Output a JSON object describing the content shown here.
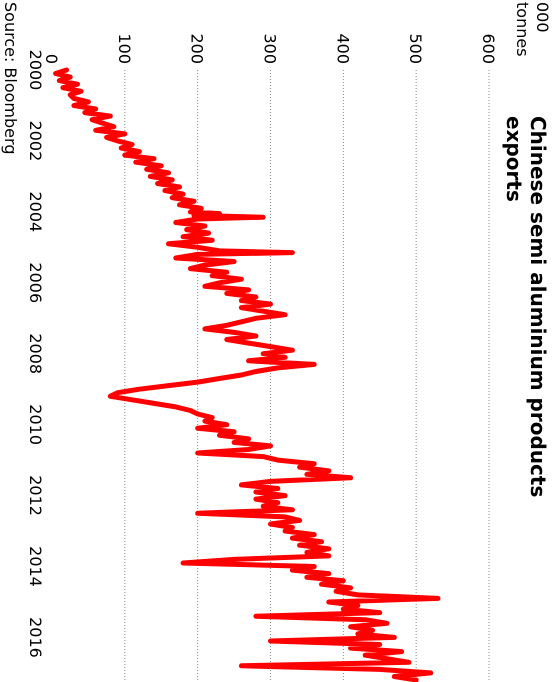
{
  "chart_data": {
    "type": "line",
    "title_line1": "Chinese semi aluminium products",
    "title_line2": "exports",
    "ylabel_line1": "000",
    "ylabel_line2": "tonnes",
    "source": "Source: Bloomberg",
    "xlim": [
      2000,
      2017.2
    ],
    "ylim": [
      0,
      600
    ],
    "x_ticks": [
      "2000",
      "2002",
      "2004",
      "2006",
      "2008",
      "2010",
      "2012",
      "2014",
      "2016"
    ],
    "y_ticks": [
      "0",
      "100",
      "200",
      "300",
      "400",
      "500",
      "600"
    ],
    "grid": "horizontal dotted",
    "series": [
      {
        "color": "#ff0000",
        "points": [
          [
            2000.0,
            20
          ],
          [
            2000.1,
            5
          ],
          [
            2000.2,
            25
          ],
          [
            2000.3,
            10
          ],
          [
            2000.4,
            35
          ],
          [
            2000.5,
            15
          ],
          [
            2000.6,
            40
          ],
          [
            2000.7,
            25
          ],
          [
            2000.8,
            30
          ],
          [
            2000.9,
            50
          ],
          [
            2001.0,
            30
          ],
          [
            2001.1,
            60
          ],
          [
            2001.2,
            45
          ],
          [
            2001.3,
            80
          ],
          [
            2001.4,
            55
          ],
          [
            2001.5,
            70
          ],
          [
            2001.6,
            85
          ],
          [
            2001.7,
            60
          ],
          [
            2001.8,
            100
          ],
          [
            2001.9,
            75
          ],
          [
            2002.0,
            90
          ],
          [
            2002.1,
            110
          ],
          [
            2002.2,
            95
          ],
          [
            2002.3,
            120
          ],
          [
            2002.4,
            100
          ],
          [
            2002.5,
            140
          ],
          [
            2002.6,
            115
          ],
          [
            2002.7,
            150
          ],
          [
            2002.8,
            130
          ],
          [
            2002.9,
            160
          ],
          [
            2003.0,
            135
          ],
          [
            2003.1,
            165
          ],
          [
            2003.2,
            145
          ],
          [
            2003.3,
            175
          ],
          [
            2003.4,
            155
          ],
          [
            2003.5,
            180
          ],
          [
            2003.6,
            165
          ],
          [
            2003.7,
            195
          ],
          [
            2003.8,
            175
          ],
          [
            2003.9,
            205
          ],
          [
            2004.0,
            190
          ],
          [
            2004.05,
            230
          ],
          [
            2004.1,
            195
          ],
          [
            2004.15,
            290
          ],
          [
            2004.2,
            200
          ],
          [
            2004.3,
            170
          ],
          [
            2004.4,
            210
          ],
          [
            2004.5,
            185
          ],
          [
            2004.6,
            215
          ],
          [
            2004.7,
            180
          ],
          [
            2004.8,
            220
          ],
          [
            2004.9,
            160
          ],
          [
            2005.0,
            200
          ],
          [
            2005.1,
            230
          ],
          [
            2005.15,
            330
          ],
          [
            2005.2,
            200
          ],
          [
            2005.3,
            170
          ],
          [
            2005.4,
            250
          ],
          [
            2005.5,
            210
          ],
          [
            2005.6,
            190
          ],
          [
            2005.7,
            240
          ],
          [
            2005.8,
            220
          ],
          [
            2005.9,
            260
          ],
          [
            2006.0,
            230
          ],
          [
            2006.1,
            210
          ],
          [
            2006.2,
            270
          ],
          [
            2006.3,
            240
          ],
          [
            2006.4,
            280
          ],
          [
            2006.5,
            260
          ],
          [
            2006.6,
            300
          ],
          [
            2006.7,
            260
          ],
          [
            2006.8,
            290
          ],
          [
            2006.9,
            320
          ],
          [
            2007.0,
            280
          ],
          [
            2007.1,
            260
          ],
          [
            2007.2,
            240
          ],
          [
            2007.3,
            210
          ],
          [
            2007.4,
            250
          ],
          [
            2007.5,
            280
          ],
          [
            2007.6,
            240
          ],
          [
            2007.7,
            270
          ],
          [
            2007.8,
            300
          ],
          [
            2007.9,
            330
          ],
          [
            2008.0,
            290
          ],
          [
            2008.1,
            320
          ],
          [
            2008.2,
            270
          ],
          [
            2008.3,
            360
          ],
          [
            2008.4,
            310
          ],
          [
            2008.5,
            280
          ],
          [
            2008.6,
            260
          ],
          [
            2008.7,
            230
          ],
          [
            2008.8,
            200
          ],
          [
            2008.9,
            160
          ],
          [
            2009.0,
            120
          ],
          [
            2009.1,
            90
          ],
          [
            2009.2,
            80
          ],
          [
            2009.3,
            110
          ],
          [
            2009.4,
            140
          ],
          [
            2009.5,
            170
          ],
          [
            2009.6,
            190
          ],
          [
            2009.7,
            200
          ],
          [
            2009.8,
            220
          ],
          [
            2009.9,
            210
          ],
          [
            2010.0,
            240
          ],
          [
            2010.1,
            200
          ],
          [
            2010.2,
            250
          ],
          [
            2010.3,
            230
          ],
          [
            2010.4,
            270
          ],
          [
            2010.5,
            250
          ],
          [
            2010.6,
            300
          ],
          [
            2010.7,
            270
          ],
          [
            2010.8,
            200
          ],
          [
            2010.9,
            290
          ],
          [
            2011.0,
            310
          ],
          [
            2011.1,
            360
          ],
          [
            2011.2,
            340
          ],
          [
            2011.3,
            380
          ],
          [
            2011.4,
            350
          ],
          [
            2011.5,
            410
          ],
          [
            2011.6,
            300
          ],
          [
            2011.7,
            260
          ],
          [
            2011.8,
            310
          ],
          [
            2011.9,
            280
          ],
          [
            2012.0,
            320
          ],
          [
            2012.1,
            280
          ],
          [
            2012.2,
            310
          ],
          [
            2012.3,
            290
          ],
          [
            2012.4,
            330
          ],
          [
            2012.5,
            200
          ],
          [
            2012.6,
            320
          ],
          [
            2012.7,
            340
          ],
          [
            2012.8,
            300
          ],
          [
            2012.9,
            330
          ],
          [
            2013.0,
            320
          ],
          [
            2013.1,
            360
          ],
          [
            2013.2,
            330
          ],
          [
            2013.3,
            370
          ],
          [
            2013.4,
            340
          ],
          [
            2013.5,
            380
          ],
          [
            2013.6,
            350
          ],
          [
            2013.7,
            380
          ],
          [
            2013.8,
            250
          ],
          [
            2013.9,
            180
          ],
          [
            2014.0,
            360
          ],
          [
            2014.1,
            330
          ],
          [
            2014.2,
            380
          ],
          [
            2014.3,
            350
          ],
          [
            2014.4,
            400
          ],
          [
            2014.5,
            370
          ],
          [
            2014.6,
            410
          ],
          [
            2014.7,
            390
          ],
          [
            2014.8,
            420
          ],
          [
            2014.9,
            530
          ],
          [
            2015.0,
            380
          ],
          [
            2015.1,
            420
          ],
          [
            2015.2,
            400
          ],
          [
            2015.3,
            450
          ],
          [
            2015.4,
            280
          ],
          [
            2015.5,
            430
          ],
          [
            2015.6,
            460
          ],
          [
            2015.7,
            410
          ],
          [
            2015.8,
            440
          ],
          [
            2015.9,
            420
          ],
          [
            2016.0,
            470
          ],
          [
            2016.1,
            300
          ],
          [
            2016.2,
            450
          ],
          [
            2016.3,
            410
          ],
          [
            2016.4,
            480
          ],
          [
            2016.5,
            430
          ],
          [
            2016.6,
            460
          ],
          [
            2016.7,
            490
          ],
          [
            2016.8,
            260
          ],
          [
            2016.9,
            450
          ],
          [
            2017.0,
            520
          ],
          [
            2017.1,
            470
          ],
          [
            2017.2,
            500
          ]
        ]
      }
    ]
  }
}
